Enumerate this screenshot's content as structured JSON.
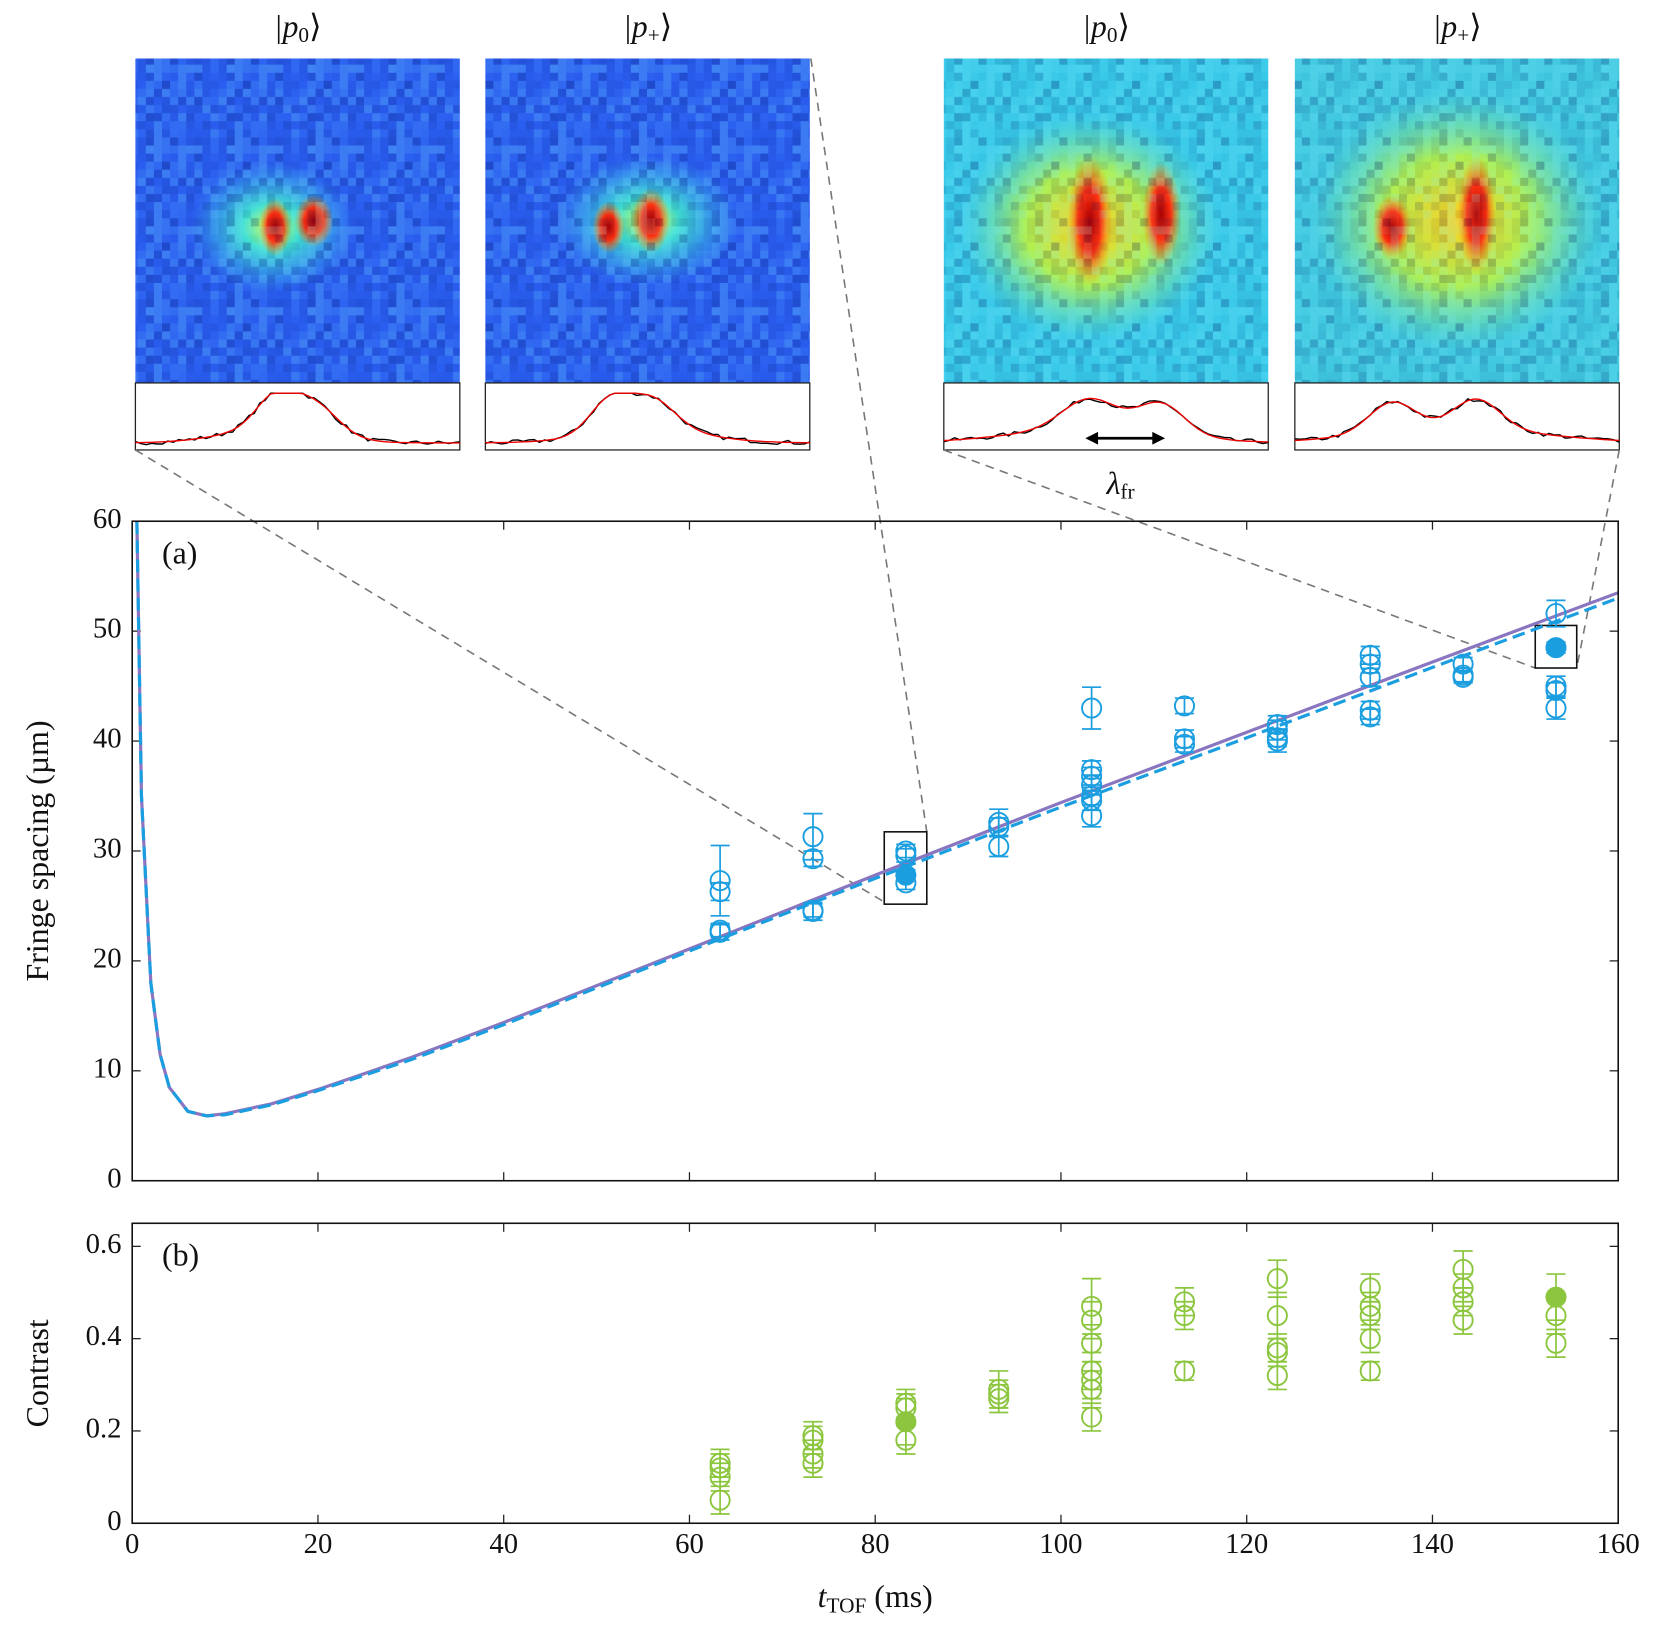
{
  "insets": [
    {
      "label": [
        "|p",
        "0",
        "⟩"
      ]
    },
    {
      "label": [
        "|p",
        "+",
        "⟩"
      ]
    },
    {
      "label": [
        "|p",
        "0",
        "⟩"
      ]
    },
    {
      "label": [
        "|p",
        "+",
        "⟩"
      ]
    }
  ],
  "annotation": [
    "λ",
    "fr"
  ],
  "chart_data": [
    {
      "type": "scatter",
      "panel_label": "(a)",
      "ylabel": "Fringe spacing (µm)",
      "xlim": [
        0,
        160
      ],
      "xticks": [
        0,
        20,
        40,
        60,
        80,
        100,
        120,
        140,
        160
      ],
      "show_xtick_labels": false,
      "ylim": [
        0,
        60
      ],
      "yticks": [
        0,
        10,
        20,
        30,
        40,
        50,
        60
      ],
      "color": "#1a9ee0",
      "points": {
        "x": [
          63.3,
          63.3,
          63.3,
          63.3,
          73.3,
          73.3,
          73.3,
          73.3,
          83.3,
          83.3,
          83.3,
          93.3,
          93.3,
          93.3,
          103.3,
          103.3,
          103.3,
          103.3,
          103.3,
          103.3,
          103.3,
          113.3,
          113.3,
          113.3,
          123.3,
          123.3,
          123.3,
          123.3,
          133.3,
          133.3,
          133.3,
          133.3,
          133.3,
          143.3,
          143.3,
          143.3,
          153.3,
          153.3,
          153.3,
          153.3
        ],
        "values": [
          27.3,
          26.3,
          22.8,
          22.6,
          31.3,
          29.3,
          24.6,
          24.5,
          30.0,
          29.6,
          27.1,
          32.6,
          32.2,
          30.4,
          43.0,
          37.4,
          36.8,
          36.0,
          35.0,
          34.6,
          33.2,
          43.2,
          40.2,
          39.7,
          41.5,
          41.0,
          40.3,
          40.0,
          47.8,
          47.0,
          45.8,
          42.8,
          42.2,
          47.0,
          46.0,
          45.8,
          51.6,
          45.0,
          44.6,
          43.0
        ],
        "errors": [
          3.2,
          0.8,
          0.6,
          0.7,
          2.1,
          0.7,
          0.6,
          0.8,
          0.6,
          0.6,
          0.6,
          1.2,
          0.8,
          0.9,
          1.9,
          0.8,
          0.8,
          0.9,
          0.8,
          0.9,
          1.0,
          0.7,
          0.8,
          0.7,
          0.8,
          0.9,
          0.8,
          1.0,
          0.8,
          0.8,
          0.8,
          0.8,
          0.7,
          0.6,
          0.6,
          0.5,
          1.2,
          0.9,
          0.7,
          1.0
        ]
      },
      "highlight": {
        "x": [
          83.3,
          153.3
        ],
        "values": [
          27.8,
          48.5
        ],
        "errors": [
          0.5,
          0.5
        ]
      },
      "lines": [
        {
          "color": "#8a76c0",
          "dash": false,
          "x": [
            0.5,
            1,
            2,
            3,
            4,
            6,
            8,
            10,
            15,
            20,
            30,
            40,
            60,
            80,
            100,
            120,
            140,
            160
          ],
          "values": [
            60,
            35,
            18,
            11.5,
            8.5,
            6.3,
            5.9,
            6.1,
            7.0,
            8.3,
            11.2,
            14.4,
            21.1,
            27.8,
            34.4,
            40.8,
            47.2,
            53.5
          ]
        },
        {
          "color": "#1a9ee0",
          "dash": true,
          "x": [
            0.5,
            1,
            2,
            3,
            4,
            6,
            8,
            10,
            15,
            20,
            30,
            40,
            60,
            80,
            100,
            120,
            140,
            160
          ],
          "values": [
            60,
            35,
            18,
            11.5,
            8.5,
            6.3,
            5.9,
            6.0,
            6.9,
            8.2,
            11.0,
            14.2,
            20.9,
            27.5,
            34.0,
            40.3,
            46.7,
            53.0
          ]
        }
      ]
    },
    {
      "type": "scatter",
      "panel_label": "(b)",
      "ylabel": "Contrast",
      "xlabel": [
        "t",
        "TOF",
        " (ms)"
      ],
      "xlim": [
        0,
        160
      ],
      "xticks": [
        0,
        20,
        40,
        60,
        80,
        100,
        120,
        140,
        160
      ],
      "show_xtick_labels": true,
      "ylim": [
        0,
        0.65
      ],
      "yticks": [
        0,
        0.2,
        0.4,
        0.6
      ],
      "color": "#8cc63f",
      "points": {
        "x": [
          63.3,
          63.3,
          63.3,
          63.3,
          73.3,
          73.3,
          73.3,
          73.3,
          83.3,
          83.3,
          83.3,
          93.3,
          93.3,
          93.3,
          103.3,
          103.3,
          103.3,
          103.3,
          103.3,
          103.3,
          103.3,
          113.3,
          113.3,
          113.3,
          123.3,
          123.3,
          123.3,
          123.3,
          123.3,
          133.3,
          133.3,
          133.3,
          133.3,
          133.3,
          143.3,
          143.3,
          143.3,
          143.3,
          153.3,
          153.3
        ],
        "values": [
          0.13,
          0.12,
          0.1,
          0.05,
          0.19,
          0.18,
          0.15,
          0.13,
          0.26,
          0.25,
          0.18,
          0.29,
          0.28,
          0.27,
          0.47,
          0.44,
          0.39,
          0.33,
          0.31,
          0.29,
          0.23,
          0.48,
          0.45,
          0.33,
          0.53,
          0.45,
          0.38,
          0.37,
          0.32,
          0.51,
          0.47,
          0.45,
          0.4,
          0.33,
          0.55,
          0.51,
          0.48,
          0.44,
          0.45,
          0.39
        ],
        "errors": [
          0.03,
          0.03,
          0.03,
          0.03,
          0.03,
          0.03,
          0.03,
          0.03,
          0.03,
          0.03,
          0.03,
          0.04,
          0.03,
          0.03,
          0.06,
          0.04,
          0.04,
          0.04,
          0.04,
          0.04,
          0.03,
          0.03,
          0.03,
          0.02,
          0.04,
          0.05,
          0.03,
          0.03,
          0.03,
          0.03,
          0.03,
          0.03,
          0.03,
          0.02,
          0.04,
          0.03,
          0.03,
          0.03,
          0.04,
          0.03
        ]
      },
      "highlight": {
        "x": [
          83.3,
          153.3
        ],
        "values": [
          0.22,
          0.49
        ],
        "errors": [
          0.05,
          0.05
        ]
      },
      "lines": []
    }
  ]
}
